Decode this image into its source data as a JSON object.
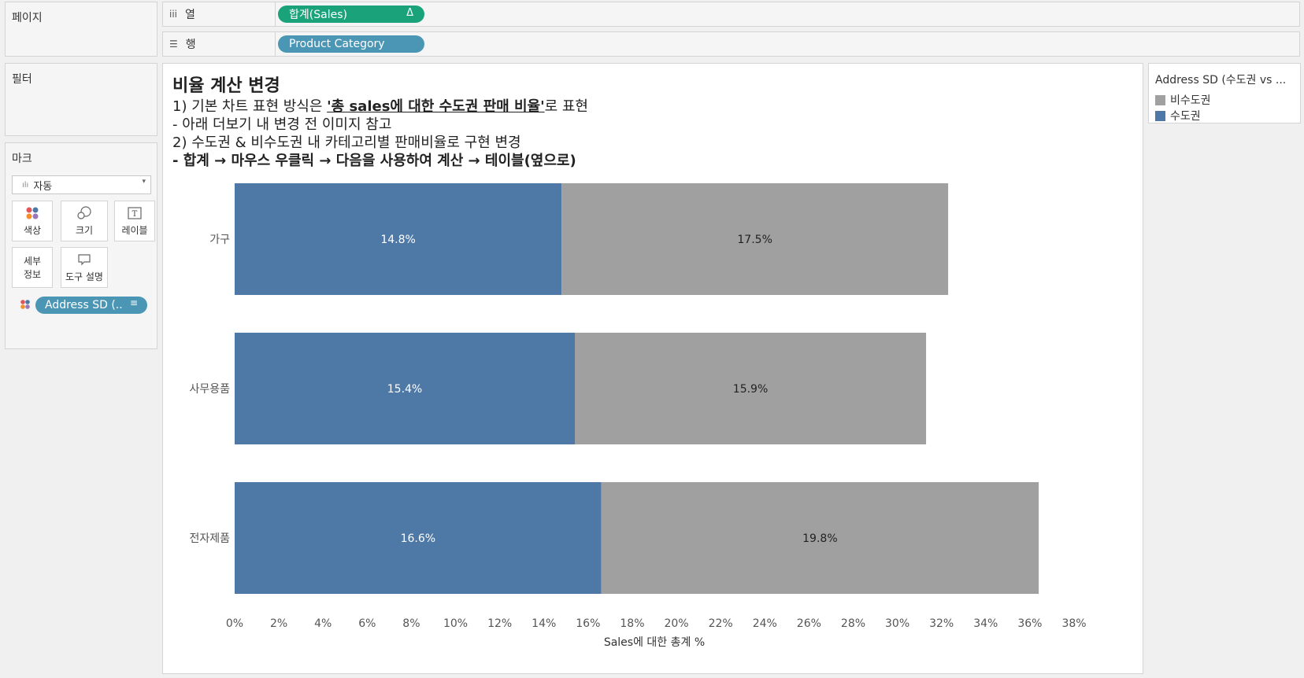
{
  "pages_panel": {
    "title": "페이지"
  },
  "columns_shelf": {
    "label": "열",
    "pill": "합계(Sales)",
    "pill_badge": "Δ"
  },
  "rows_shelf": {
    "label": "행",
    "pill": "Product Category"
  },
  "filters_panel": {
    "title": "필터"
  },
  "marks_panel": {
    "title": "마크",
    "mark_type": "자동",
    "buttons": {
      "color": "색상",
      "size": "크기",
      "label": "레이블",
      "detail_line1": "세부",
      "detail_line2": "정보",
      "tooltip": "도구 설명"
    },
    "color_pill": "Address SD (.."
  },
  "view": {
    "title": "비율 계산 변경",
    "line1_prefix": "1) 기본 차트 표현 방식은 ",
    "line1_emph": "'총 sales에 대한 수도권 판매 비율'",
    "line1_suffix": "로 표현",
    "line2": "- 아래 더보기 내 변경 전 이미지 참고",
    "line3": "2) 수도권 & 비수도권 내 카테고리별 판매비율로 구현 변경",
    "line4": "- 합계 → 마우스 우클릭 → 다음을 사용하여 계산 → 테이블(옆으로)"
  },
  "legend": {
    "title": "Address SD (수도권 vs ...",
    "items": [
      {
        "label": "비수도권",
        "color": "#a0a0a0"
      },
      {
        "label": "수도권",
        "color": "#4e79a7"
      }
    ]
  },
  "colors": {
    "capital": "#4e79a7",
    "non_capital": "#a0a0a0",
    "columns_pill": "#1aa37a",
    "rows_pill": "#4b96b5"
  },
  "chart_data": {
    "type": "bar",
    "orientation": "horizontal",
    "stacked": true,
    "categories": [
      "가구",
      "사무용품",
      "전자제품"
    ],
    "series": [
      {
        "name": "수도권",
        "values": [
          14.8,
          15.4,
          16.6
        ],
        "labels": [
          "14.8%",
          "15.4%",
          "16.6%"
        ]
      },
      {
        "name": "비수도권",
        "values": [
          17.5,
          15.9,
          19.8
        ],
        "labels": [
          "17.5%",
          "15.9%",
          "19.8%"
        ]
      }
    ],
    "xlabel": "Sales에 대한 총계 %",
    "xlim": [
      0,
      38
    ],
    "xticks": [
      "0%",
      "2%",
      "4%",
      "6%",
      "8%",
      "10%",
      "12%",
      "14%",
      "16%",
      "18%",
      "20%",
      "22%",
      "24%",
      "26%",
      "28%",
      "30%",
      "32%",
      "34%",
      "36%",
      "38%"
    ],
    "grid": false
  }
}
